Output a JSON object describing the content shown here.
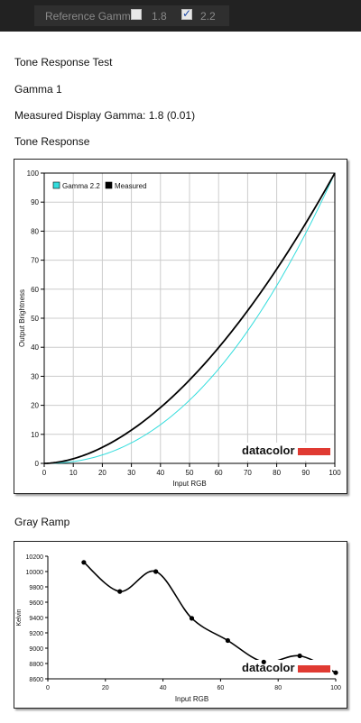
{
  "toolbar": {
    "reference_label": "Reference Gamma:",
    "options": [
      {
        "label": "1.8",
        "checked": false
      },
      {
        "label": "2.2",
        "checked": true
      }
    ]
  },
  "report": {
    "title": "Tone Response Test",
    "subtitle": "Gamma 1",
    "measured": "Measured Display Gamma: 1.8 (0.01)",
    "tone_heading": "Tone Response",
    "gray_heading": "Gray Ramp"
  },
  "brand": "datacolor",
  "colors": {
    "reference": "#33dddd",
    "measured": "#000000",
    "brand_bar": "#e03a32",
    "grid": "#cccccc"
  },
  "chart_data": [
    {
      "type": "line",
      "title": "Tone Response",
      "xlabel": "Input RGB",
      "ylabel": "Output Brightness",
      "xlim": [
        0,
        100
      ],
      "ylim": [
        0,
        100
      ],
      "x_ticks": [
        0,
        10,
        20,
        30,
        40,
        50,
        60,
        70,
        80,
        90,
        100
      ],
      "y_ticks": [
        0,
        10,
        20,
        30,
        40,
        50,
        60,
        70,
        80,
        90,
        100
      ],
      "grid": true,
      "legend": "top-left",
      "series": [
        {
          "name": "Gamma 2.2",
          "color": "#33dddd",
          "gamma": 2.2
        },
        {
          "name": "Measured",
          "color": "#000000",
          "gamma": 1.8
        }
      ]
    },
    {
      "type": "line",
      "title": "Gray Ramp",
      "xlabel": "Input RGB",
      "ylabel": "Kelvin",
      "xlim": [
        0,
        100
      ],
      "ylim": [
        8600,
        10200
      ],
      "x_ticks": [
        0,
        20,
        40,
        60,
        80,
        100
      ],
      "y_ticks": [
        8600,
        8800,
        9000,
        9200,
        9400,
        9600,
        9800,
        10000,
        10200
      ],
      "grid": false,
      "series": [
        {
          "name": "",
          "color": "#000000",
          "x": [
            12.5,
            25,
            37.5,
            50,
            62.5,
            75,
            87.5,
            100
          ],
          "y": [
            10120,
            9740,
            10000,
            9390,
            9100,
            8820,
            8900,
            8680
          ]
        }
      ]
    }
  ]
}
